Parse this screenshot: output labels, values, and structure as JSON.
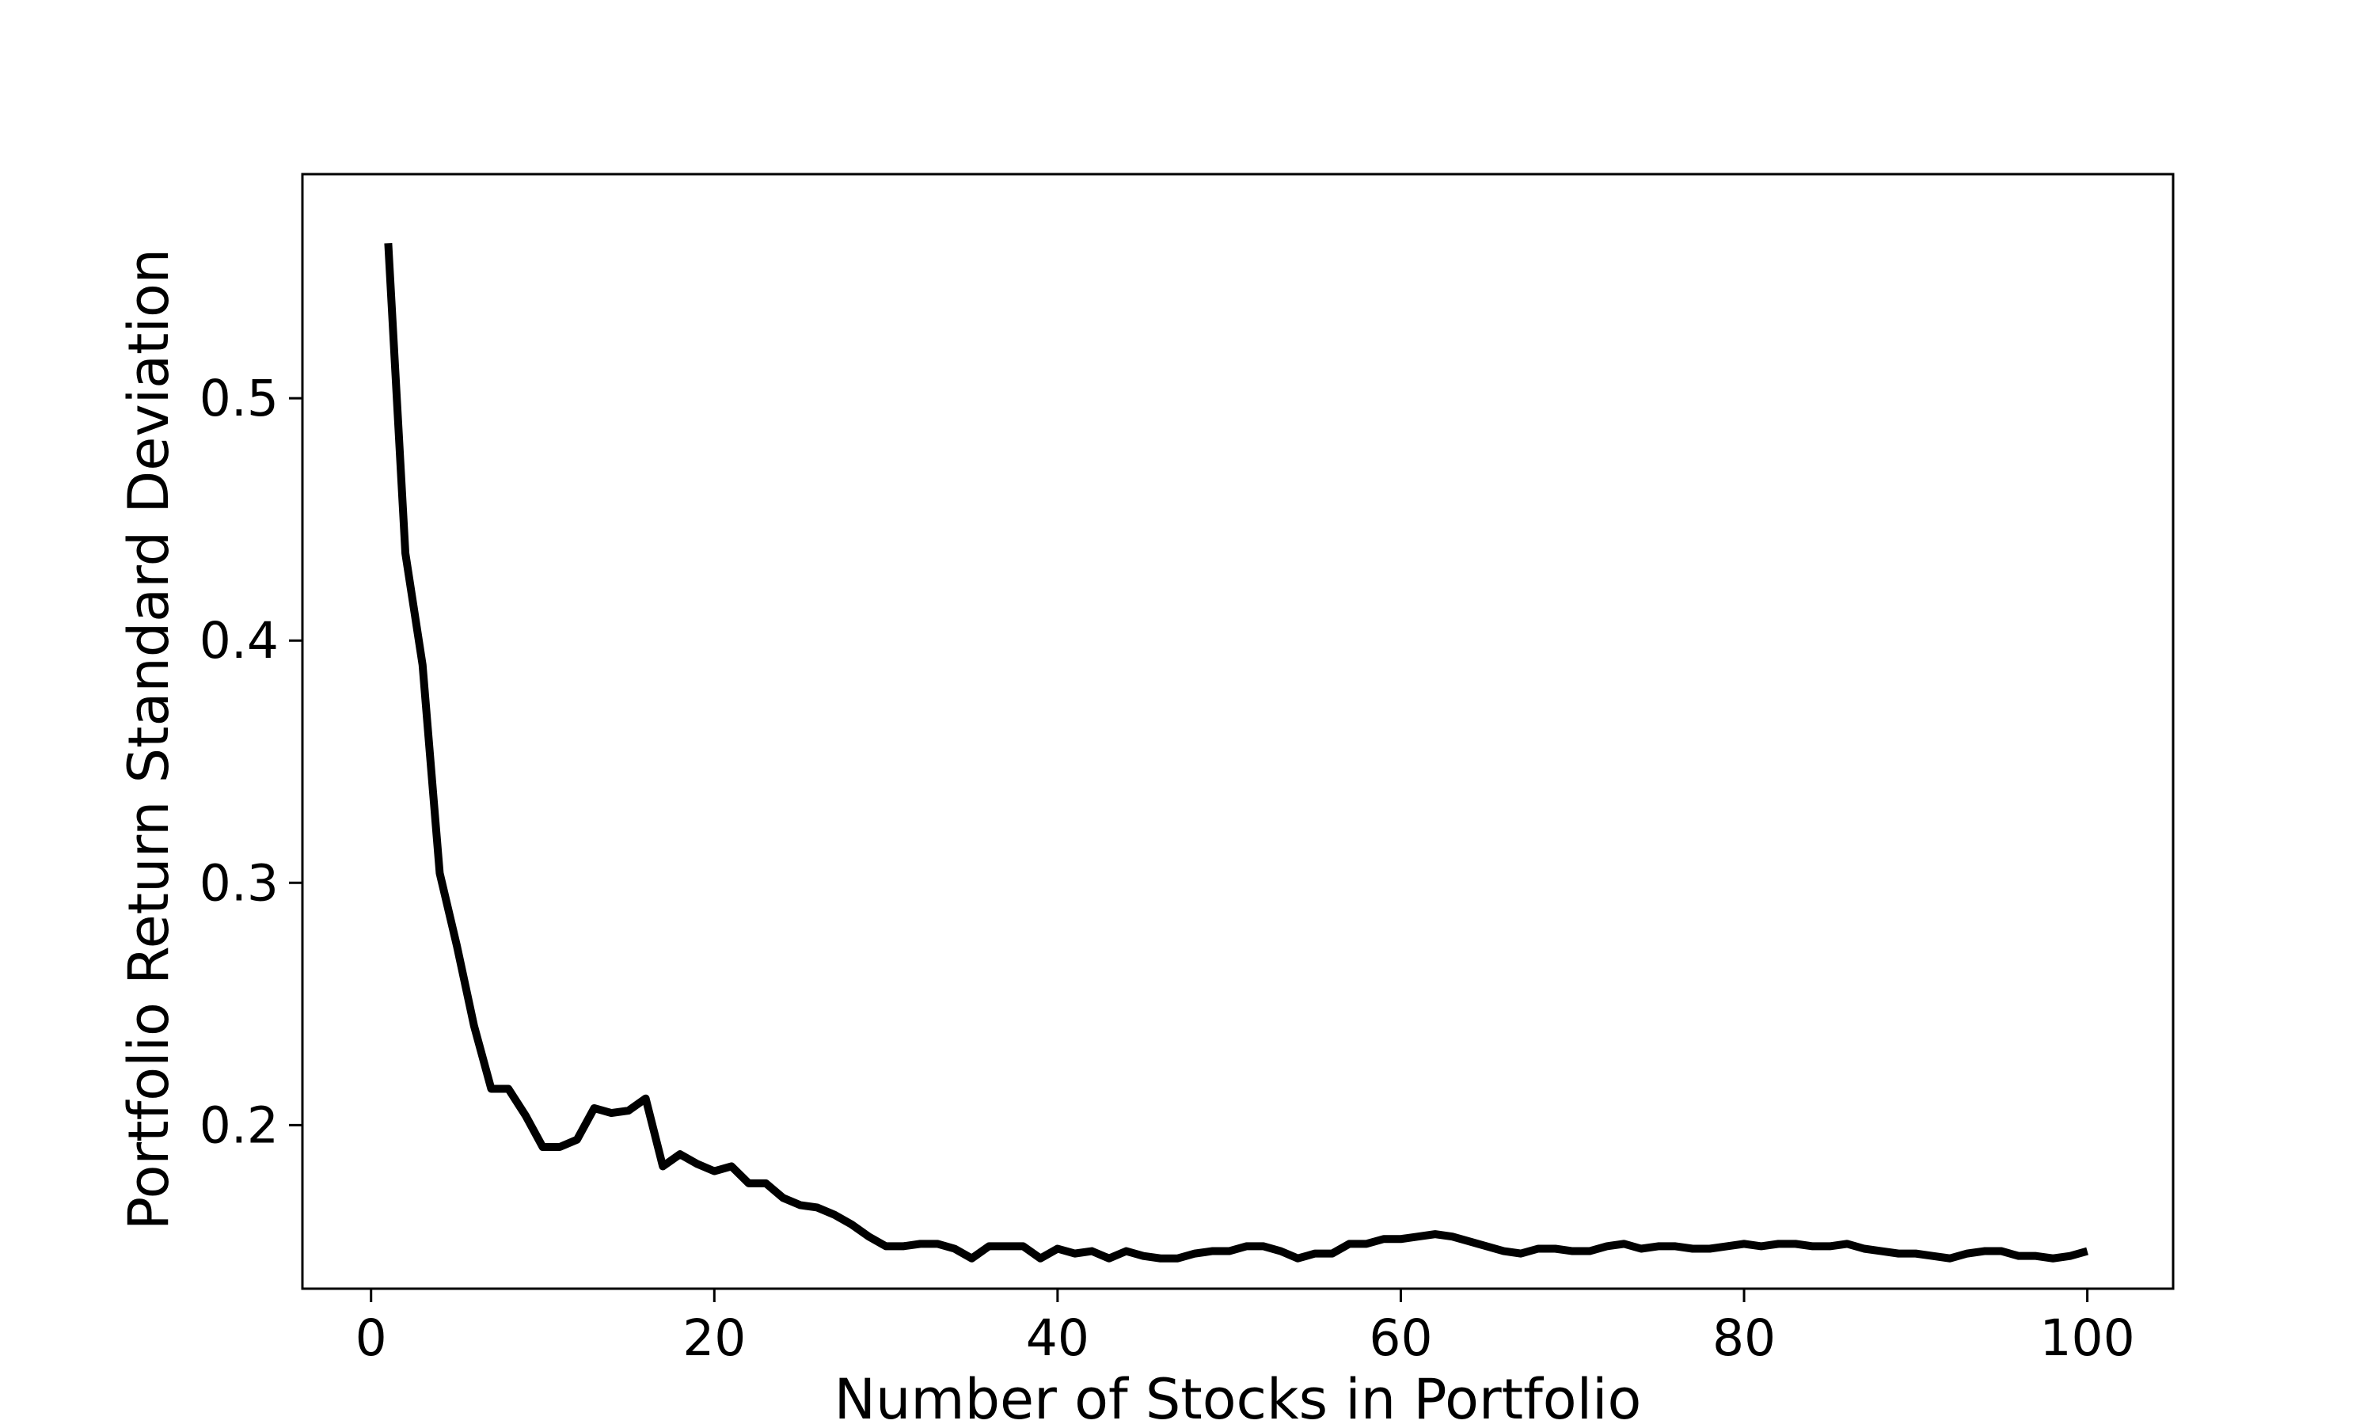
{
  "chart_data": {
    "type": "line",
    "title": "",
    "xlabel": "Number of Stocks in Portfolio",
    "ylabel": "Portfolio Return Standard Deviation",
    "xlim": [
      -4,
      105
    ],
    "ylim": [
      0.1325,
      0.5925
    ],
    "xticks": [
      {
        "value": 0,
        "label": "0"
      },
      {
        "value": 20,
        "label": "20"
      },
      {
        "value": 40,
        "label": "40"
      },
      {
        "value": 60,
        "label": "60"
      },
      {
        "value": 80,
        "label": "80"
      },
      {
        "value": 100,
        "label": "100"
      }
    ],
    "yticks": [
      {
        "value": 0.2,
        "label": "0.2"
      },
      {
        "value": 0.3,
        "label": "0.3"
      },
      {
        "value": 0.4,
        "label": "0.4"
      },
      {
        "value": 0.5,
        "label": "0.5"
      }
    ],
    "grid": false,
    "series": [
      {
        "color": "#000000",
        "x": [
          1,
          2,
          3,
          4,
          5,
          6,
          7,
          8,
          9,
          10,
          11,
          12,
          13,
          14,
          15,
          16,
          17,
          18,
          19,
          20,
          21,
          22,
          23,
          24,
          25,
          26,
          27,
          28,
          29,
          30,
          31,
          32,
          33,
          34,
          35,
          36,
          37,
          38,
          39,
          40,
          41,
          42,
          43,
          44,
          45,
          46,
          47,
          48,
          49,
          50,
          51,
          52,
          53,
          54,
          55,
          56,
          57,
          58,
          59,
          60,
          61,
          62,
          63,
          64,
          65,
          66,
          67,
          68,
          69,
          70,
          71,
          72,
          73,
          74,
          75,
          76,
          77,
          78,
          79,
          80,
          81,
          82,
          83,
          84,
          85,
          86,
          87,
          88,
          89,
          90,
          91,
          92,
          93,
          94,
          95,
          96,
          97,
          98,
          99,
          100
        ],
        "values": [
          0.564,
          0.436,
          0.39,
          0.304,
          0.274,
          0.241,
          0.215,
          0.215,
          0.204,
          0.191,
          0.191,
          0.194,
          0.207,
          0.205,
          0.206,
          0.211,
          0.183,
          0.188,
          0.184,
          0.181,
          0.183,
          0.176,
          0.176,
          0.17,
          0.167,
          0.166,
          0.163,
          0.159,
          0.154,
          0.15,
          0.15,
          0.151,
          0.151,
          0.149,
          0.145,
          0.15,
          0.15,
          0.15,
          0.145,
          0.149,
          0.147,
          0.148,
          0.145,
          0.148,
          0.146,
          0.145,
          0.145,
          0.147,
          0.148,
          0.148,
          0.15,
          0.15,
          0.148,
          0.145,
          0.147,
          0.147,
          0.151,
          0.151,
          0.153,
          0.153,
          0.154,
          0.155,
          0.154,
          0.152,
          0.15,
          0.148,
          0.147,
          0.149,
          0.149,
          0.148,
          0.148,
          0.15,
          0.151,
          0.149,
          0.15,
          0.15,
          0.149,
          0.149,
          0.15,
          0.151,
          0.15,
          0.151,
          0.151,
          0.15,
          0.15,
          0.151,
          0.149,
          0.148,
          0.147,
          0.147,
          0.146,
          0.145,
          0.147,
          0.148,
          0.148,
          0.146,
          0.146,
          0.145,
          0.146,
          0.148
        ]
      }
    ]
  }
}
